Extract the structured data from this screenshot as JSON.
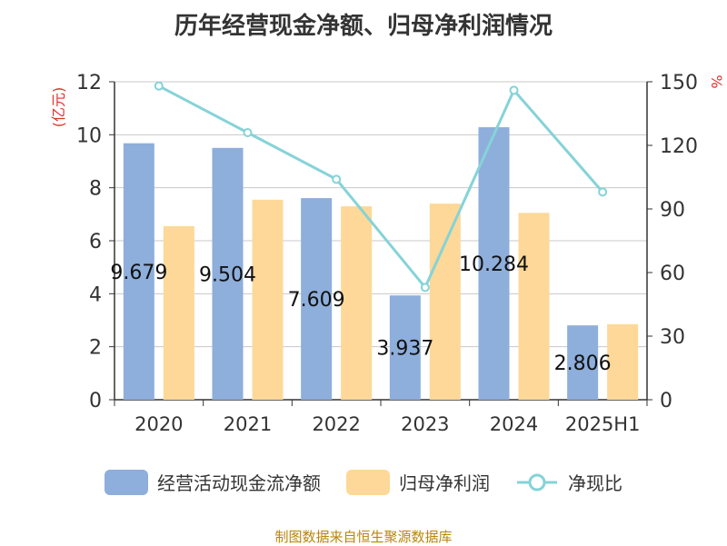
{
  "title": "历年经营现金净额、归母净利润情况",
  "source": "制图数据来自恒生聚源数据库",
  "colors": {
    "cash_flow": "#8eaedb",
    "net_profit": "#fdd898",
    "ratio": "#85d3d8",
    "left_unit": "#e0312c",
    "axis": "#333333",
    "grid": "#c8c8c8"
  },
  "chart_data": {
    "type": "bar",
    "categories": [
      "2020",
      "2021",
      "2022",
      "2023",
      "2024",
      "2025H1"
    ],
    "series": [
      {
        "name": "经营活动现金流净额",
        "type": "bar",
        "axis": "left",
        "values": [
          9.679,
          9.504,
          7.609,
          3.937,
          10.284,
          2.806
        ],
        "labels": [
          "9.679",
          "9.504",
          "7.609",
          "3.937",
          "10.284",
          "2.806"
        ]
      },
      {
        "name": "归母净利润",
        "type": "bar",
        "axis": "left",
        "values": [
          6.55,
          7.55,
          7.3,
          7.4,
          7.05,
          2.85
        ]
      },
      {
        "name": "净现比",
        "type": "line",
        "axis": "right",
        "values": [
          148,
          126,
          104,
          53,
          146,
          98
        ]
      }
    ],
    "y_left": {
      "unit_label": "(亿元)",
      "min": 0,
      "max": 12,
      "ticks": [
        "0",
        "2",
        "4",
        "6",
        "8",
        "10",
        "12"
      ]
    },
    "y_right": {
      "unit_label": "%",
      "min": 0,
      "max": 150,
      "ticks": [
        "0",
        "30",
        "60",
        "90",
        "120",
        "150"
      ]
    },
    "grid": true,
    "legend_position": "bottom"
  }
}
